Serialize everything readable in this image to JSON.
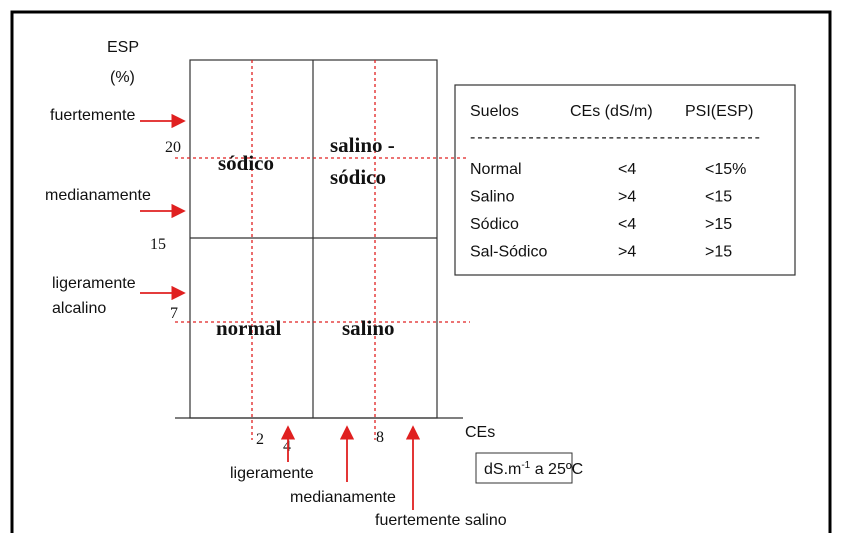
{
  "axes": {
    "y_label": "ESP",
    "y_unit": "(%)",
    "x_label": "CEs",
    "x_unit": {
      "main": "dS.m",
      "sup": "-1",
      "rest": " a 25ºC"
    }
  },
  "y_ticks": [
    "20",
    "15",
    "7"
  ],
  "x_ticks": [
    "2",
    "4",
    "8"
  ],
  "quadrants": {
    "top_left": "sódico",
    "top_right": [
      "salino -",
      "sódico"
    ],
    "bottom_left": "normal",
    "bottom_right": "salino"
  },
  "alkalinity_levels": [
    "fuertemente",
    "medianamente",
    [
      "ligeramente",
      "alcalino"
    ]
  ],
  "salinity_levels": [
    "ligeramente",
    "medianamente",
    "fuertemente salino"
  ],
  "table": {
    "headers": [
      "Suelos",
      "CEs (dS/m)",
      "PSI(ESP)"
    ],
    "separator": "----------------------------------------",
    "rows": [
      [
        "Normal",
        "<4",
        "<15%"
      ],
      [
        "Salino",
        ">4",
        "<15"
      ],
      [
        "Sódico",
        "<4",
        ">15"
      ],
      [
        "Sal-Sódico",
        ">4",
        ">15"
      ]
    ]
  }
}
